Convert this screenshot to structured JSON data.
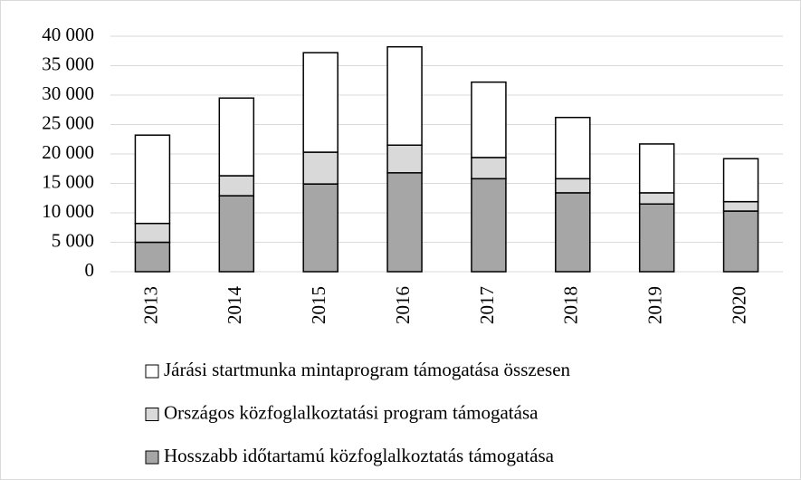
{
  "chart_data": {
    "type": "stacked_bar",
    "categories": [
      "2013",
      "2014",
      "2015",
      "2016",
      "2017",
      "2018",
      "2019",
      "2020"
    ],
    "series": [
      {
        "name": "Járási startmunka mintaprogram támogatása összesen",
        "color": "#ffffff",
        "values": [
          15000,
          13200,
          16900,
          16700,
          12800,
          10400,
          8300,
          7300
        ]
      },
      {
        "name": "Országos közfoglalkoztatási program támogatása",
        "color": "#d9d9d9",
        "values": [
          3200,
          3400,
          5400,
          4700,
          3600,
          2400,
          1900,
          1600
        ]
      },
      {
        "name": "Hosszabb időtartamú közfoglalkoztatás támogatása",
        "color": "#a6a6a6",
        "values": [
          5000,
          12900,
          14900,
          16800,
          15800,
          13400,
          11500,
          10300
        ]
      }
    ],
    "ylim": [
      0,
      40000
    ],
    "yticks": [
      0,
      {
        "value": 5000,
        "label": "5 000"
      },
      {
        "value": 10000,
        "label": "10 000"
      },
      {
        "value": 15000,
        "label": "15 000"
      },
      {
        "value": 20000,
        "label": "20 000"
      },
      {
        "value": 25000,
        "label": "25 000"
      },
      {
        "value": 30000,
        "label": "30 000"
      },
      {
        "value": 35000,
        "label": "35 000"
      },
      {
        "value": 40000,
        "label": "40 000"
      }
    ],
    "grid": true
  }
}
